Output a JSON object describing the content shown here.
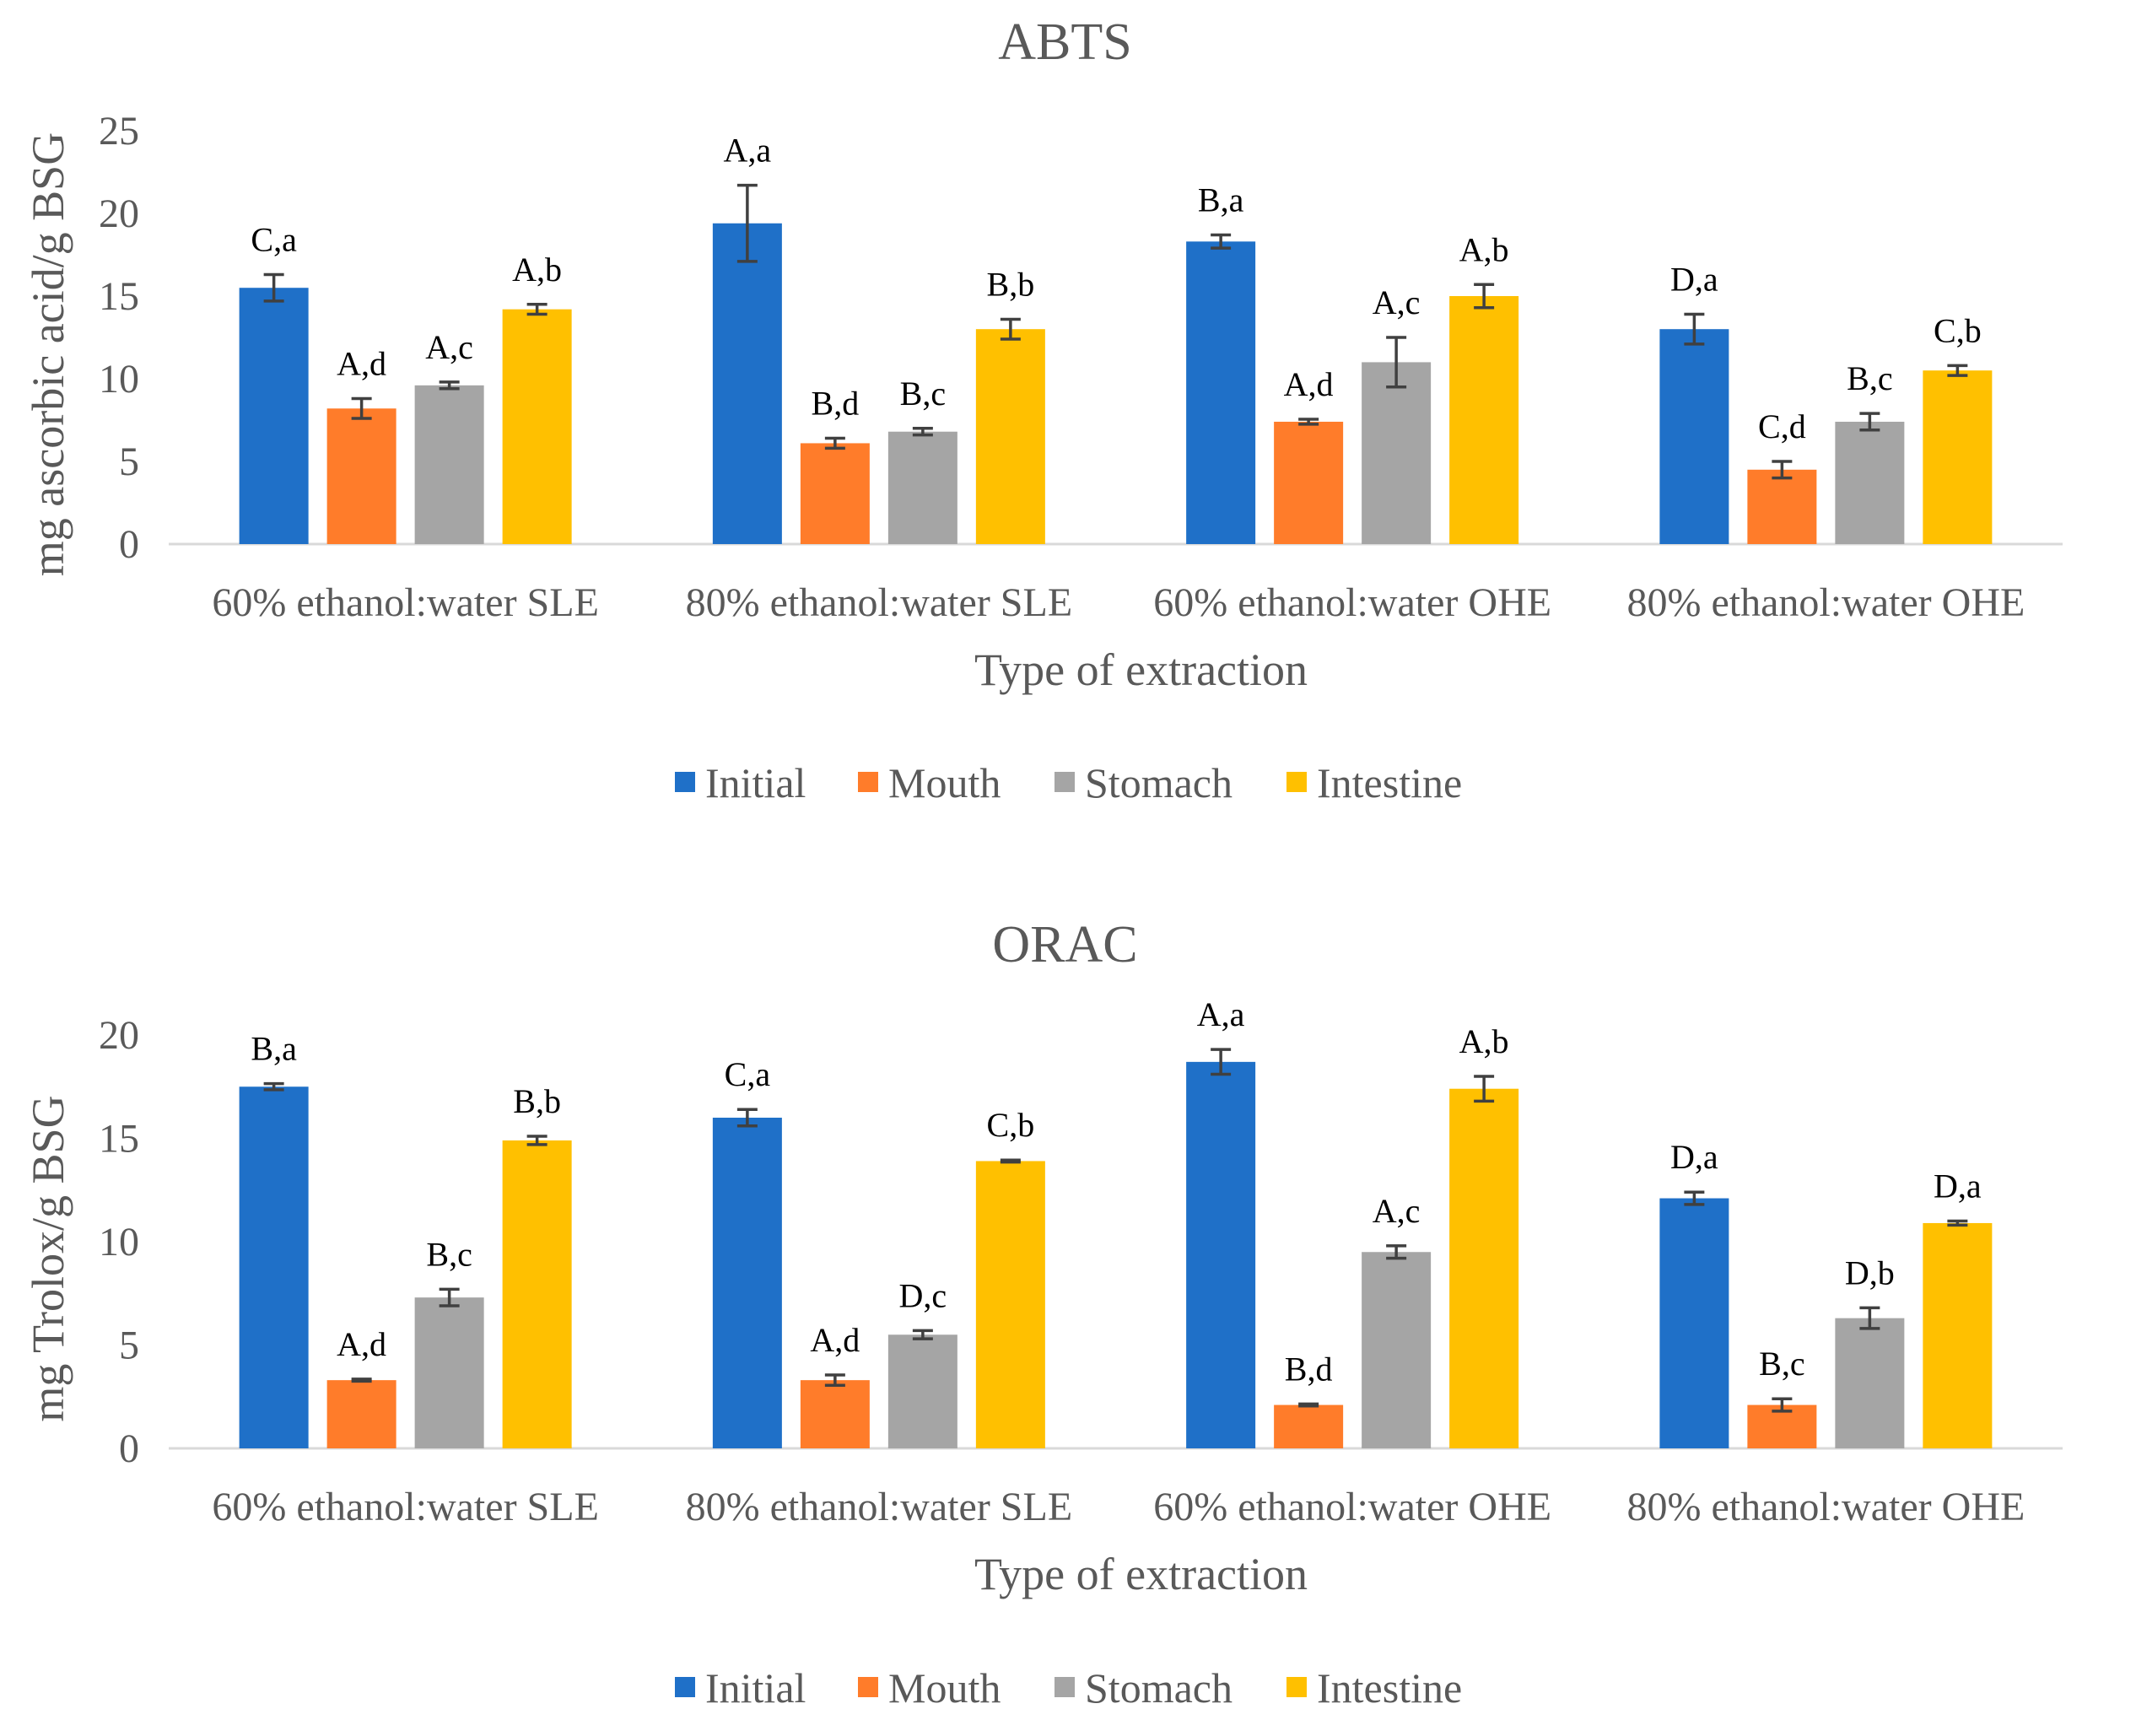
{
  "chart_data": [
    {
      "type": "bar",
      "title": "ABTS",
      "xlabel": "Type of extraction",
      "ylabel": "mg ascorbic acid/g BSG",
      "ylim": [
        0,
        25
      ],
      "yticks": [
        0,
        5,
        10,
        15,
        20,
        25
      ],
      "grid": false,
      "legend_position": "bottom",
      "categories": [
        "60% ethanol:water SLE",
        "80% ethanol:water SLE",
        "60% ethanol:water OHE",
        "80% ethanol:water OHE"
      ],
      "series": [
        {
          "name": "Initial",
          "color": "#1f70c8",
          "values": [
            15.5,
            19.4,
            18.3,
            13.0
          ],
          "errors": [
            0.8,
            2.3,
            0.4,
            0.9
          ],
          "labels": [
            "C,a",
            "A,a",
            "B,a",
            "D,a"
          ]
        },
        {
          "name": "Mouth",
          "color": "#ff7c2a",
          "values": [
            8.2,
            6.1,
            7.4,
            4.5
          ],
          "errors": [
            0.6,
            0.3,
            0.15,
            0.5
          ],
          "labels": [
            "A,d",
            "B,d",
            "A,d",
            "C,d"
          ]
        },
        {
          "name": "Stomach",
          "color": "#a5a5a5",
          "values": [
            9.6,
            6.8,
            11.0,
            7.4
          ],
          "errors": [
            0.2,
            0.2,
            1.5,
            0.5
          ],
          "labels": [
            "A,c",
            "B,c",
            "A,c",
            "B,c"
          ]
        },
        {
          "name": "Intestine",
          "color": "#ffc000",
          "values": [
            14.2,
            13.0,
            15.0,
            10.5
          ],
          "errors": [
            0.3,
            0.6,
            0.7,
            0.3
          ],
          "labels": [
            "A,b",
            "B,b",
            "A,b",
            "C,b"
          ]
        }
      ]
    },
    {
      "type": "bar",
      "title": "ORAC",
      "xlabel": "Type of extraction",
      "ylabel": "mg Trolox/g BSG",
      "ylim": [
        0,
        20
      ],
      "yticks": [
        0,
        5,
        10,
        15,
        20
      ],
      "grid": false,
      "legend_position": "bottom",
      "categories": [
        "60% ethanol:water SLE",
        "80% ethanol:water SLE",
        "60% ethanol:water OHE",
        "80% ethanol:water OHE"
      ],
      "series": [
        {
          "name": "Initial",
          "color": "#1f70c8",
          "values": [
            17.5,
            16.0,
            18.7,
            12.1
          ],
          "errors": [
            0.15,
            0.4,
            0.6,
            0.3
          ],
          "labels": [
            "B,a",
            "C,a",
            "A,a",
            "D,a"
          ]
        },
        {
          "name": "Mouth",
          "color": "#ff7c2a",
          "values": [
            3.3,
            3.3,
            2.1,
            2.1
          ],
          "errors": [
            0.05,
            0.25,
            0.05,
            0.3
          ],
          "labels": [
            "A,d",
            "A,d",
            "B,d",
            "B,c"
          ]
        },
        {
          "name": "Stomach",
          "color": "#a5a5a5",
          "values": [
            7.3,
            5.5,
            9.5,
            6.3
          ],
          "errors": [
            0.4,
            0.2,
            0.3,
            0.5
          ],
          "labels": [
            "B,c",
            "D,c",
            "A,c",
            "D,b"
          ]
        },
        {
          "name": "Intestine",
          "color": "#ffc000",
          "values": [
            14.9,
            13.9,
            17.4,
            10.9
          ],
          "errors": [
            0.2,
            0.05,
            0.6,
            0.1
          ],
          "labels": [
            "B,b",
            "C,b",
            "A,b",
            "D,a"
          ]
        }
      ]
    }
  ]
}
